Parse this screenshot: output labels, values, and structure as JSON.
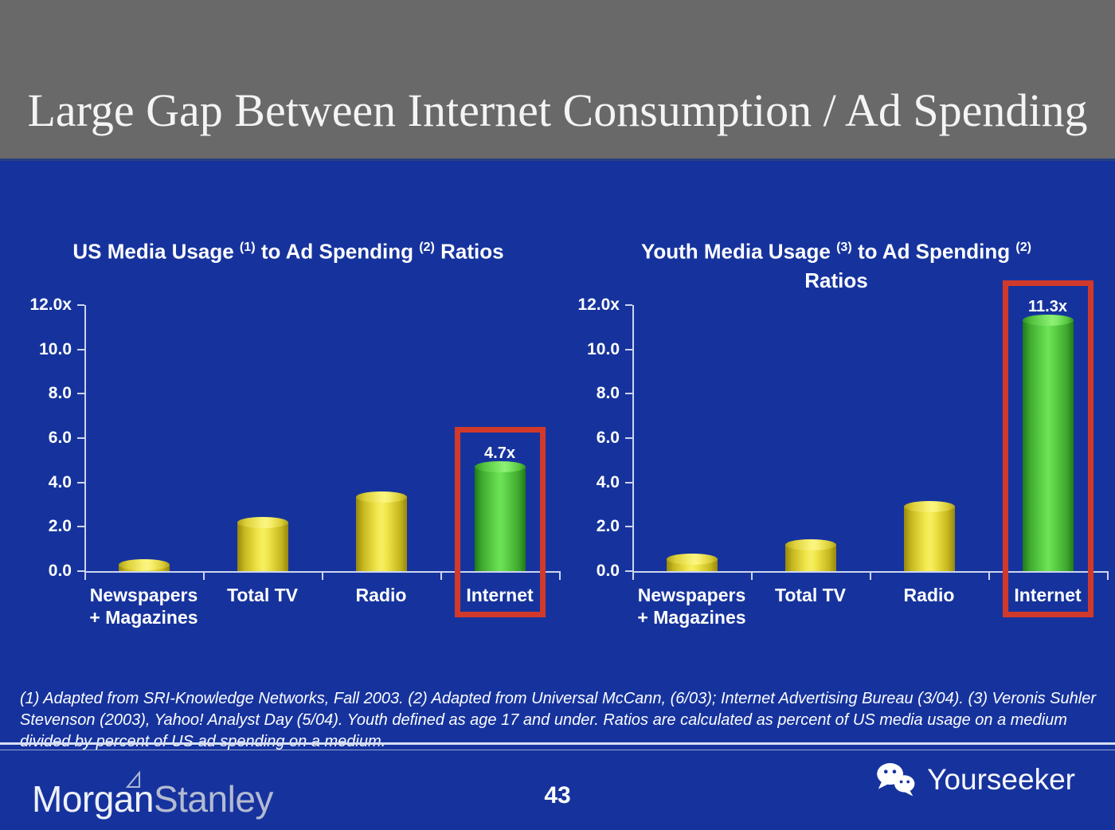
{
  "slide": {
    "title": "Large Gap Between Internet Consumption / Ad Spending",
    "page_number": "43"
  },
  "colors": {
    "header_bg": "#696969",
    "slide_bg": "#16339d",
    "axis": "#ccd5f0",
    "highlight_red": "#d13a2a",
    "bar_yellow": "#f0e64a",
    "bar_green": "#63d94c",
    "text": "#ffffff",
    "brand_secondary": "#b4bbd2"
  },
  "chart_data": [
    {
      "type": "bar",
      "title": "US Media Usage (1) to Ad Spending (2) Ratios",
      "title_parts": [
        {
          "text": "US Media Usage "
        },
        {
          "sup": "(1)"
        },
        {
          "text": " to Ad Spending "
        },
        {
          "sup": "(2)"
        },
        {
          "text": " Ratios"
        }
      ],
      "title_line2": "",
      "categories": [
        "Newspapers\n+ Magazines",
        "Total TV",
        "Radio",
        "Internet"
      ],
      "values": [
        0.3,
        2.2,
        3.35,
        4.7
      ],
      "bar_colors": [
        "yellow",
        "yellow",
        "yellow",
        "green"
      ],
      "highlight_index": 3,
      "highlight_label": "4.7x",
      "xlabel": "",
      "ylabel": "",
      "ylim": [
        0,
        12
      ],
      "yticks": [
        {
          "value": 12,
          "label": "12.0x"
        },
        {
          "value": 10,
          "label": "10.0"
        },
        {
          "value": 8,
          "label": "8.0"
        },
        {
          "value": 6,
          "label": "6.0"
        },
        {
          "value": 4,
          "label": "4.0"
        },
        {
          "value": 2,
          "label": "2.0"
        },
        {
          "value": 0,
          "label": "0.0"
        }
      ],
      "grid": false,
      "legend": "none"
    },
    {
      "type": "bar",
      "title": "Youth Media Usage (3) to Ad Spending (2) Ratios",
      "title_parts": [
        {
          "text": "Youth Media Usage "
        },
        {
          "sup": "(3)"
        },
        {
          "text": " to Ad Spending "
        },
        {
          "sup": "(2)"
        }
      ],
      "title_line2": "Ratios",
      "categories": [
        "Newspapers\n+ Magazines",
        "Total TV",
        "Radio",
        "Internet"
      ],
      "values": [
        0.55,
        1.2,
        2.9,
        11.3
      ],
      "bar_colors": [
        "yellow",
        "yellow",
        "yellow",
        "green"
      ],
      "highlight_index": 3,
      "highlight_label": "11.3x",
      "xlabel": "",
      "ylabel": "",
      "ylim": [
        0,
        12
      ],
      "yticks": [
        {
          "value": 12,
          "label": "12.0x"
        },
        {
          "value": 10,
          "label": "10.0"
        },
        {
          "value": 8,
          "label": "8.0"
        },
        {
          "value": 6,
          "label": "6.0"
        },
        {
          "value": 4,
          "label": "4.0"
        },
        {
          "value": 2,
          "label": "2.0"
        },
        {
          "value": 0,
          "label": "0.0"
        }
      ],
      "grid": false,
      "legend": "none"
    }
  ],
  "footnote": {
    "text": "(1) Adapted from SRI-Knowledge Networks, Fall 2003.  (2) Adapted from Universal McCann, (6/03); Internet Advertising Bureau (3/04). (3) Veronis Suhler Stevenson (2003), Yahoo! Analyst Day (5/04).  Youth defined as age 17 and under.  Ratios are calculated as percent of US media usage on a medium divided by percent of US ad spending on a medium."
  },
  "footer": {
    "brand_word1": "Morgan",
    "brand_word2": "Stanley",
    "partner_brand": "Yourseeker",
    "icons": {
      "wechat": "wechat-icon",
      "brand_triangle": "triangle-icon"
    }
  }
}
